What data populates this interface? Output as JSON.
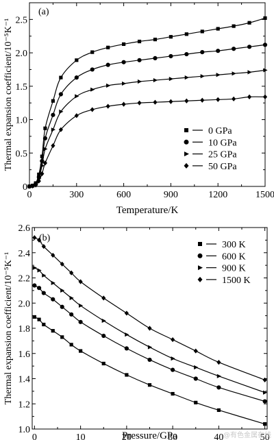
{
  "chart_data": [
    {
      "type": "line",
      "panel_label": "(a)",
      "xlabel": "Temperature/K",
      "ylabel": "Thermal expansion coefficient/10⁻⁵K⁻¹",
      "xlim": [
        0,
        1500
      ],
      "ylim": [
        0,
        2.75
      ],
      "xticks": [
        0,
        300,
        600,
        900,
        1200,
        1500
      ],
      "yticks": [
        0,
        0.5,
        1.0,
        1.5,
        2.0,
        2.5
      ],
      "xtick_labels": [
        "0",
        "300",
        "600",
        "900",
        "1200",
        "1500"
      ],
      "ytick_labels": [
        "0",
        "0.5",
        "1.0",
        "1.5",
        "2.0",
        "2.5"
      ],
      "legend_position": "lower-right",
      "series": [
        {
          "name": "0 GPa",
          "marker": "square",
          "x": [
            0,
            20,
            40,
            60,
            80,
            100,
            150,
            200,
            300,
            400,
            500,
            600,
            700,
            800,
            900,
            1000,
            1100,
            1200,
            1300,
            1400,
            1500
          ],
          "y": [
            0,
            0.01,
            0.05,
            0.18,
            0.45,
            0.87,
            1.28,
            1.63,
            1.89,
            2.01,
            2.08,
            2.13,
            2.17,
            2.2,
            2.24,
            2.28,
            2.32,
            2.36,
            2.4,
            2.45,
            2.52
          ]
        },
        {
          "name": "10 GPa",
          "marker": "circle",
          "x": [
            0,
            20,
            40,
            60,
            80,
            100,
            150,
            200,
            300,
            400,
            500,
            600,
            700,
            800,
            900,
            1000,
            1100,
            1200,
            1300,
            1400,
            1500
          ],
          "y": [
            0,
            0.01,
            0.04,
            0.14,
            0.38,
            0.72,
            1.07,
            1.38,
            1.63,
            1.75,
            1.82,
            1.86,
            1.89,
            1.92,
            1.95,
            1.98,
            2.01,
            2.03,
            2.06,
            2.09,
            2.12
          ]
        },
        {
          "name": "25 GPa",
          "marker": "triangle-right",
          "x": [
            0,
            20,
            40,
            60,
            80,
            100,
            150,
            200,
            300,
            400,
            500,
            600,
            700,
            800,
            900,
            1000,
            1100,
            1200,
            1300,
            1400,
            1500
          ],
          "y": [
            0,
            0.01,
            0.03,
            0.12,
            0.31,
            0.56,
            0.85,
            1.12,
            1.35,
            1.45,
            1.51,
            1.54,
            1.57,
            1.59,
            1.61,
            1.63,
            1.65,
            1.67,
            1.69,
            1.71,
            1.74
          ]
        },
        {
          "name": "50 GPa",
          "marker": "diamond",
          "x": [
            0,
            20,
            40,
            60,
            80,
            100,
            150,
            200,
            300,
            400,
            500,
            600,
            700,
            800,
            900,
            1000,
            1100,
            1200,
            1300,
            1400,
            1500
          ],
          "y": [
            0,
            0.005,
            0.02,
            0.08,
            0.19,
            0.35,
            0.61,
            0.85,
            1.06,
            1.15,
            1.2,
            1.23,
            1.25,
            1.26,
            1.27,
            1.28,
            1.29,
            1.3,
            1.31,
            1.34,
            1.34
          ]
        }
      ]
    },
    {
      "type": "line",
      "panel_label": "(b)",
      "xlabel": "Pressure/GPa",
      "ylabel": "Thermal expansion coefficient/10⁻⁵K⁻¹",
      "xlim": [
        -0.5,
        50.5
      ],
      "ylim": [
        1.0,
        2.6
      ],
      "xticks": [
        0,
        10,
        20,
        30,
        40,
        50
      ],
      "yticks": [
        1.0,
        1.2,
        1.4,
        1.6,
        1.8,
        2.0,
        2.2,
        2.4,
        2.6
      ],
      "xtick_labels": [
        "0",
        "10",
        "20",
        "30",
        "40",
        "50"
      ],
      "ytick_labels": [
        "1.0",
        "1.2",
        "1.4",
        "1.6",
        "1.8",
        "2.0",
        "2.2",
        "2.4",
        "2.6"
      ],
      "legend_position": "top-right",
      "series": [
        {
          "name": "300 K",
          "marker": "square",
          "x": [
            0,
            1,
            2,
            4,
            6,
            8,
            10,
            15,
            20,
            25,
            30,
            35,
            40,
            50
          ],
          "y": [
            1.89,
            1.87,
            1.83,
            1.78,
            1.73,
            1.67,
            1.62,
            1.52,
            1.43,
            1.35,
            1.28,
            1.21,
            1.15,
            1.04
          ]
        },
        {
          "name": "600 K",
          "marker": "circle",
          "x": [
            0,
            1,
            2,
            4,
            6,
            8,
            10,
            15,
            20,
            25,
            30,
            35,
            40,
            50
          ],
          "y": [
            2.14,
            2.12,
            2.08,
            2.03,
            1.97,
            1.91,
            1.85,
            1.74,
            1.64,
            1.55,
            1.47,
            1.4,
            1.33,
            1.22
          ]
        },
        {
          "name": "900 K",
          "marker": "triangle-right",
          "x": [
            0,
            1,
            2,
            4,
            6,
            8,
            10,
            15,
            20,
            25,
            30,
            35,
            40,
            50
          ],
          "y": [
            2.28,
            2.26,
            2.22,
            2.16,
            2.1,
            2.04,
            1.98,
            1.86,
            1.75,
            1.65,
            1.56,
            1.49,
            1.42,
            1.29
          ]
        },
        {
          "name": "1500 K",
          "marker": "diamond",
          "x": [
            0,
            1,
            2,
            4,
            6,
            8,
            10,
            15,
            20,
            25,
            30,
            35,
            40,
            50
          ],
          "y": [
            2.52,
            2.5,
            2.45,
            2.38,
            2.31,
            2.24,
            2.17,
            2.04,
            1.92,
            1.8,
            1.71,
            1.62,
            1.53,
            1.39
          ]
        }
      ]
    }
  ],
  "watermark": "@有色金属在线"
}
